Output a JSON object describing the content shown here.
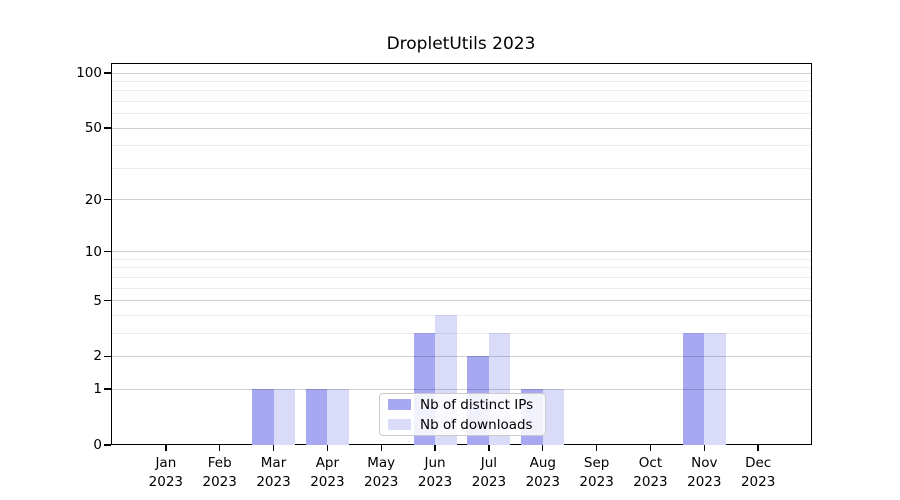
{
  "figure": {
    "title": "DropletUtils 2023"
  },
  "chart_data": {
    "type": "bar",
    "title": "DropletUtils 2023",
    "xlabel": "",
    "ylabel": "",
    "categories": [
      "Jan",
      "Feb",
      "Mar",
      "Apr",
      "May",
      "Jun",
      "Jul",
      "Aug",
      "Sep",
      "Oct",
      "Nov",
      "Dec"
    ],
    "x_year": "2023",
    "series": [
      {
        "name": "Nb of distinct IPs",
        "key": "distinct-ips",
        "color": "#a7a8f2",
        "values": [
          0,
          0,
          1,
          1,
          0,
          3,
          2,
          1,
          0,
          0,
          3,
          0
        ]
      },
      {
        "name": "Nb of downloads",
        "key": "downloads",
        "color": "#dadbf9",
        "values": [
          0,
          0,
          1,
          1,
          0,
          4,
          3,
          1,
          0,
          0,
          3,
          0
        ]
      }
    ],
    "yscale": "log1p",
    "ylim": [
      0,
      112
    ],
    "yticks": [
      0,
      1,
      2,
      5,
      10,
      20,
      50,
      100
    ],
    "yticks_minor": [
      3,
      4,
      6,
      7,
      8,
      9,
      30,
      40,
      60,
      70,
      80,
      90
    ],
    "grid": true,
    "legend_position": "lower center"
  }
}
